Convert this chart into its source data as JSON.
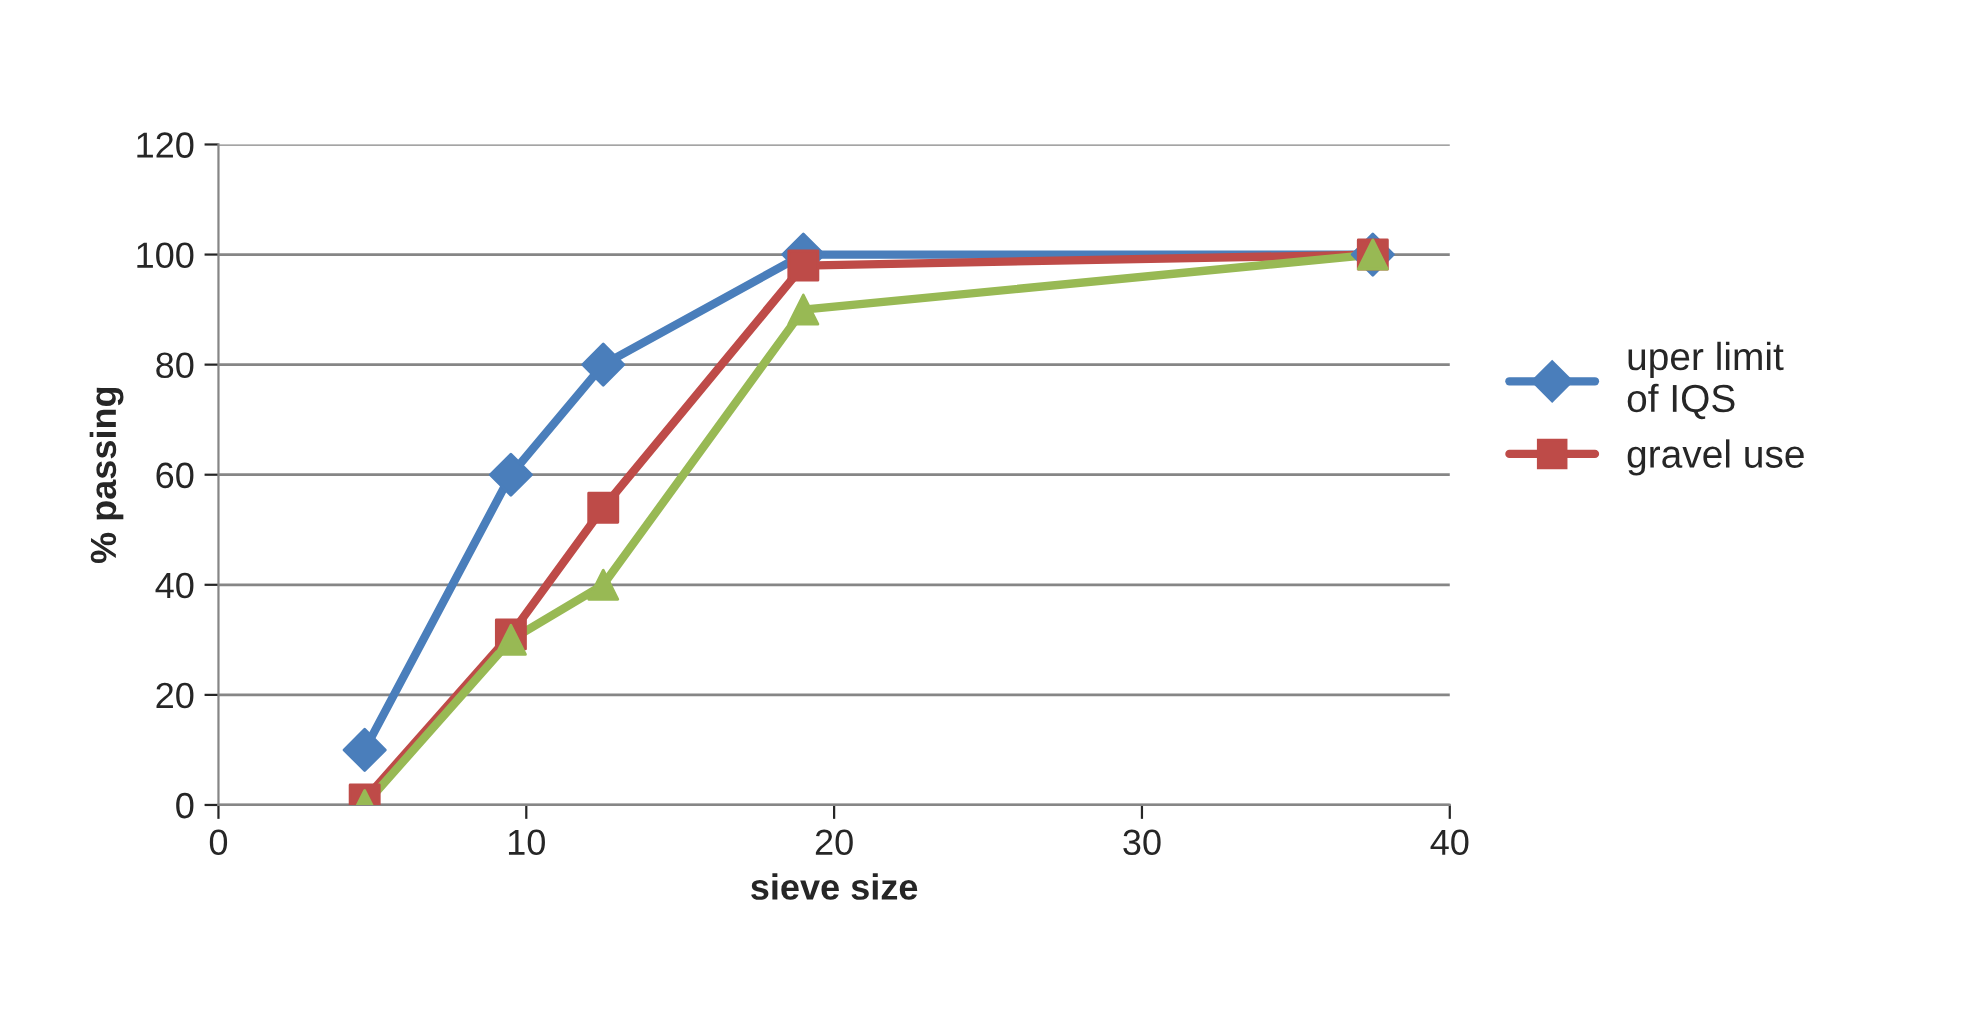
{
  "chart_data": {
    "type": "line",
    "xlabel": "sieve size",
    "ylabel": "% passing",
    "xlim": [
      0,
      40
    ],
    "xticks": [
      0,
      10,
      20,
      30,
      40
    ],
    "ylim": [
      0,
      120
    ],
    "yticks": [
      0,
      20,
      40,
      60,
      80,
      100,
      120
    ],
    "grid": "y",
    "legend": "right",
    "line_style": "solid",
    "series": [
      {
        "name": "uper limit of IQS",
        "color": "#4a7ebb",
        "marker": "diamond",
        "x": [
          4.75,
          9.5,
          12.5,
          19,
          37.5
        ],
        "values": [
          10,
          60,
          80,
          100,
          100
        ]
      },
      {
        "name": "gravel use",
        "color": "#be4b48",
        "marker": "square",
        "x": [
          4.75,
          9.5,
          12.5,
          19,
          37.5
        ],
        "values": [
          1,
          31,
          54,
          98,
          100
        ]
      },
      {
        "color": "#98b954",
        "marker": "triangle",
        "x": [
          4.75,
          9.5,
          12.5,
          19,
          37.5
        ],
        "values": [
          0,
          30,
          40,
          90,
          100
        ]
      }
    ]
  }
}
